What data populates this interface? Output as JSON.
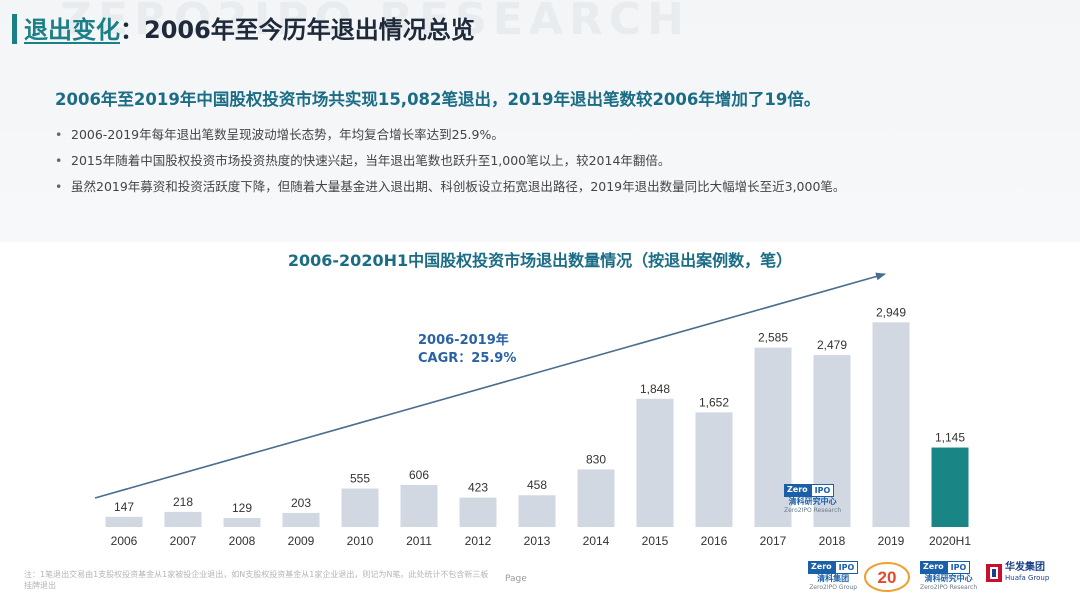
{
  "watermark": "ZERO2IPO RESEARCH",
  "title": {
    "accent": "退出变化",
    "rest": "：2006年至今历年退出情况总览"
  },
  "headline": "2006年至2019年中国股权投资市场共实现15,082笔退出，2019年退出笔数较2006年增加了19倍。",
  "bullets": [
    "2006-2019年每年退出笔数呈现波动增长态势，年均复合增长率达到25.9%。",
    "2015年随着中国股权投资市场投资热度的快速兴起，当年退出笔数也跃升至1,000笔以上，较2014年翻倍。",
    "虽然2019年募资和投资活跃度下降，但随着大量基金进入退出期、科创板设立拓宽退出路径，2019年退出数量同比大幅增长至近3,000笔。"
  ],
  "chart_data": {
    "type": "bar",
    "title": "2006-2020H1中国股权投资市场退出数量情况（按退出案例数，笔）",
    "categories": [
      "2006",
      "2007",
      "2008",
      "2009",
      "2010",
      "2011",
      "2012",
      "2013",
      "2014",
      "2015",
      "2016",
      "2017",
      "2018",
      "2019",
      "2020H1"
    ],
    "values": [
      147,
      218,
      129,
      203,
      555,
      606,
      423,
      458,
      830,
      1848,
      1652,
      2585,
      2479,
      2949,
      1145
    ],
    "value_labels": [
      "147",
      "218",
      "129",
      "203",
      "555",
      "606",
      "423",
      "458",
      "830",
      "1,848",
      "1,652",
      "2,585",
      "2,479",
      "2,949",
      "1,145"
    ],
    "ylim": [
      0,
      3300
    ],
    "bar_color": "#d2d8e2",
    "highlight_color": "#1a8585",
    "highlight_category": "2020H1",
    "annotation": {
      "line1": "2006-2019年",
      "line2": "CAGR：25.9%"
    },
    "trend_arrow_color": "#4a6d8f"
  },
  "chart_watermark": {
    "brand_left": "Zero",
    "brand_right": "IPO",
    "cn": "清科研究中心",
    "en": "Zero2IPO Research"
  },
  "footnote": "注：1笔退出交易由1支股权投资基金从1家被投企业退出，如N支股权投资基金从1家企业退出，则记为N笔。此处统计不包含新三板挂牌退出",
  "page_label": "Page",
  "logos": {
    "group": {
      "cn": "清科集团",
      "en": "Zero2IPO Group",
      "brand_left": "Zero",
      "brand_right": "IPO"
    },
    "anniversary": {
      "text": "20"
    },
    "research": {
      "cn": "清科研究中心",
      "en": "Zero2IPO Research",
      "brand_left": "Zero",
      "brand_right": "IPO"
    },
    "huafa": {
      "cn": "华发集团",
      "en": "Huafa Group",
      "color": "#c8102e"
    }
  }
}
